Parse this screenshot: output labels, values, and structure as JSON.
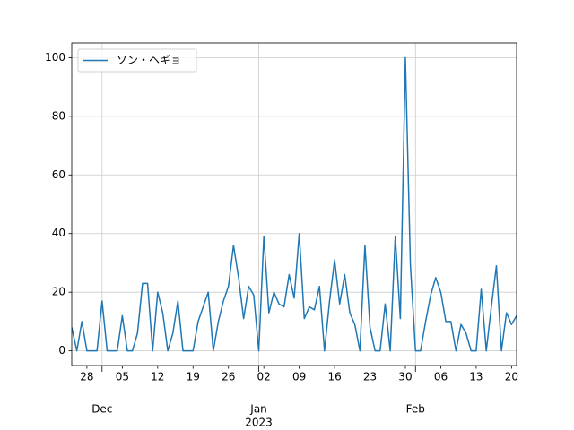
{
  "chart_data": {
    "type": "line",
    "x": [
      "2022-11-25",
      "2022-11-26",
      "2022-11-27",
      "2022-11-28",
      "2022-11-29",
      "2022-11-30",
      "2022-12-01",
      "2022-12-02",
      "2022-12-03",
      "2022-12-04",
      "2022-12-05",
      "2022-12-06",
      "2022-12-07",
      "2022-12-08",
      "2022-12-09",
      "2022-12-10",
      "2022-12-11",
      "2022-12-12",
      "2022-12-13",
      "2022-12-14",
      "2022-12-15",
      "2022-12-16",
      "2022-12-17",
      "2022-12-18",
      "2022-12-19",
      "2022-12-20",
      "2022-12-21",
      "2022-12-22",
      "2022-12-23",
      "2022-12-24",
      "2022-12-25",
      "2022-12-26",
      "2022-12-27",
      "2022-12-28",
      "2022-12-29",
      "2022-12-30",
      "2022-12-31",
      "2023-01-01",
      "2023-01-02",
      "2023-01-03",
      "2023-01-04",
      "2023-01-05",
      "2023-01-06",
      "2023-01-07",
      "2023-01-08",
      "2023-01-09",
      "2023-01-10",
      "2023-01-11",
      "2023-01-12",
      "2023-01-13",
      "2023-01-14",
      "2023-01-15",
      "2023-01-16",
      "2023-01-17",
      "2023-01-18",
      "2023-01-19",
      "2023-01-20",
      "2023-01-21",
      "2023-01-22",
      "2023-01-23",
      "2023-01-24",
      "2023-01-25",
      "2023-01-26",
      "2023-01-27",
      "2023-01-28",
      "2023-01-29",
      "2023-01-30",
      "2023-01-31",
      "2023-02-01",
      "2023-02-02",
      "2023-02-03",
      "2023-02-04",
      "2023-02-05",
      "2023-02-06",
      "2023-02-07",
      "2023-02-08",
      "2023-02-09",
      "2023-02-10",
      "2023-02-11",
      "2023-02-12",
      "2023-02-13",
      "2023-02-14",
      "2023-02-15",
      "2023-02-16",
      "2023-02-17",
      "2023-02-18",
      "2023-02-19",
      "2023-02-20",
      "2023-02-21"
    ],
    "series": [
      {
        "name": "ソン・ヘギョ",
        "color": "#1f77b4",
        "values": [
          8,
          0,
          10,
          0,
          0,
          0,
          17,
          0,
          0,
          0,
          12,
          0,
          0,
          6,
          23,
          23,
          0,
          20,
          13,
          0,
          6,
          17,
          0,
          0,
          0,
          10,
          15,
          20,
          0,
          10,
          17,
          22,
          36,
          25,
          11,
          22,
          19,
          0,
          39,
          13,
          20,
          16,
          15,
          26,
          18,
          40,
          11,
          15,
          14,
          22,
          0,
          17,
          31,
          16,
          26,
          13,
          9,
          0,
          36,
          8,
          0,
          0,
          16,
          0,
          39,
          11,
          100,
          29,
          0,
          0,
          10,
          19,
          25,
          20,
          10,
          10,
          0,
          9,
          6,
          0,
          0,
          21,
          0,
          15,
          29,
          0,
          13,
          9,
          12
        ]
      }
    ],
    "xlim": [
      "2022-11-25",
      "2023-02-21"
    ],
    "xticks": [
      {
        "value": "2022-11-28",
        "label": "28"
      },
      {
        "value": "2022-12-05",
        "label": "05"
      },
      {
        "value": "2022-12-12",
        "label": "12"
      },
      {
        "value": "2022-12-19",
        "label": "19"
      },
      {
        "value": "2022-12-26",
        "label": "26"
      },
      {
        "value": "2023-01-02",
        "label": "02"
      },
      {
        "value": "2023-01-09",
        "label": "09"
      },
      {
        "value": "2023-01-16",
        "label": "16"
      },
      {
        "value": "2023-01-23",
        "label": "23"
      },
      {
        "value": "2023-01-30",
        "label": "30"
      },
      {
        "value": "2023-02-06",
        "label": "06"
      },
      {
        "value": "2023-02-13",
        "label": "13"
      },
      {
        "value": "2023-02-20",
        "label": "20"
      }
    ],
    "month_ticks": [
      {
        "value": "2022-12-01",
        "label": [
          "Dec"
        ]
      },
      {
        "value": "2023-01-01",
        "label": [
          "Jan",
          "2023"
        ]
      },
      {
        "value": "2023-02-01",
        "label": [
          "Feb"
        ]
      }
    ],
    "ylim": [
      -5,
      105
    ],
    "yticks": [
      0,
      20,
      40,
      60,
      80,
      100
    ],
    "grid": true,
    "legend": "upper left"
  }
}
